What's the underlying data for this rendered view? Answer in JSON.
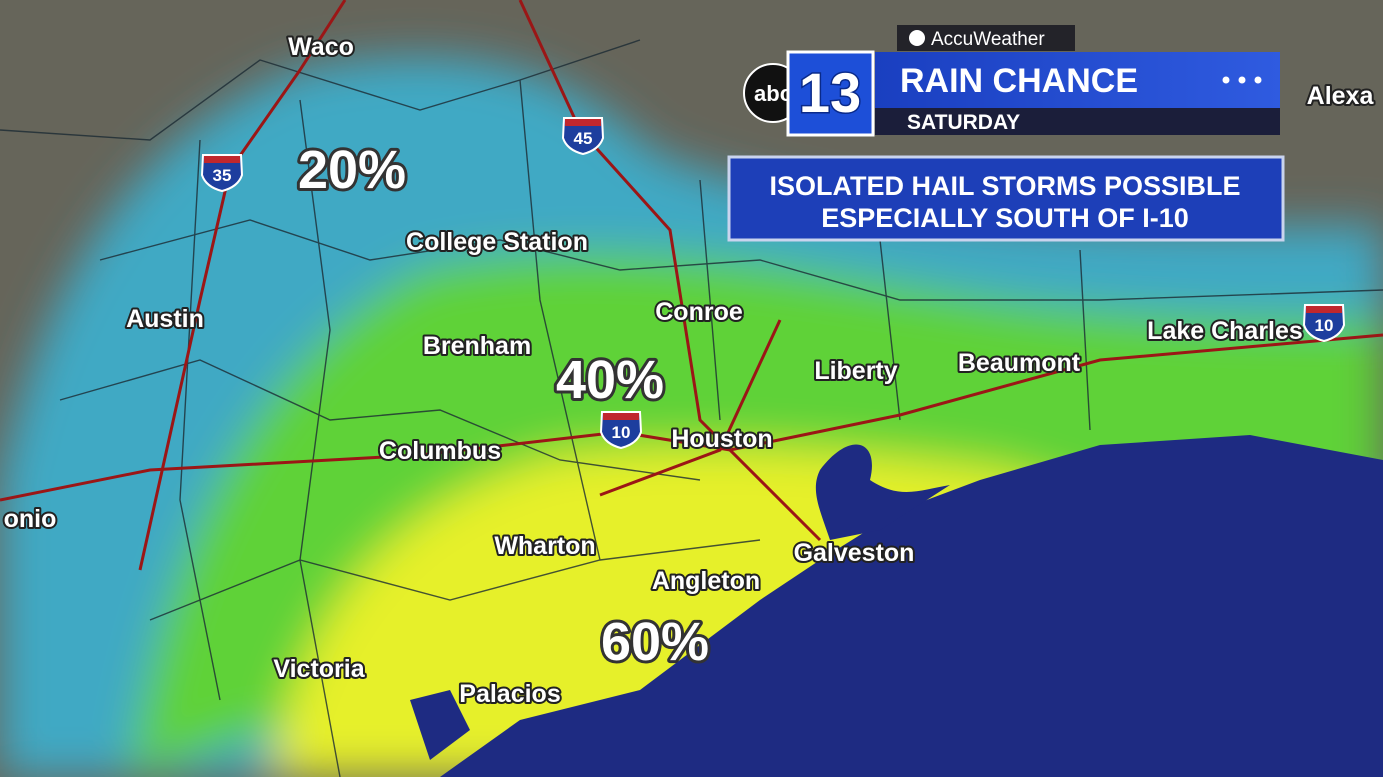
{
  "branding": {
    "provider": "AccuWeather",
    "network": "abc",
    "channel": "13"
  },
  "header": {
    "title": "RAIN CHANCE",
    "subtitle": "SATURDAY"
  },
  "note": {
    "lines": [
      "ISOLATED HAIL STORMS POSSIBLE",
      "ESPECIALLY SOUTH OF I-10"
    ]
  },
  "cities": [
    "Waco",
    "College Station",
    "Austin",
    "Brenham",
    "Conroe",
    "Liberty",
    "Beaumont",
    "Lake Charles",
    "Columbus",
    "Houston",
    "Wharton",
    "Galveston",
    "Angleton",
    "Victoria",
    "Palacios",
    "onio",
    "Alexa"
  ],
  "rain_chances": [
    "20%",
    "40%",
    "60%"
  ],
  "highways": [
    "35",
    "45",
    "10",
    "10"
  ]
}
